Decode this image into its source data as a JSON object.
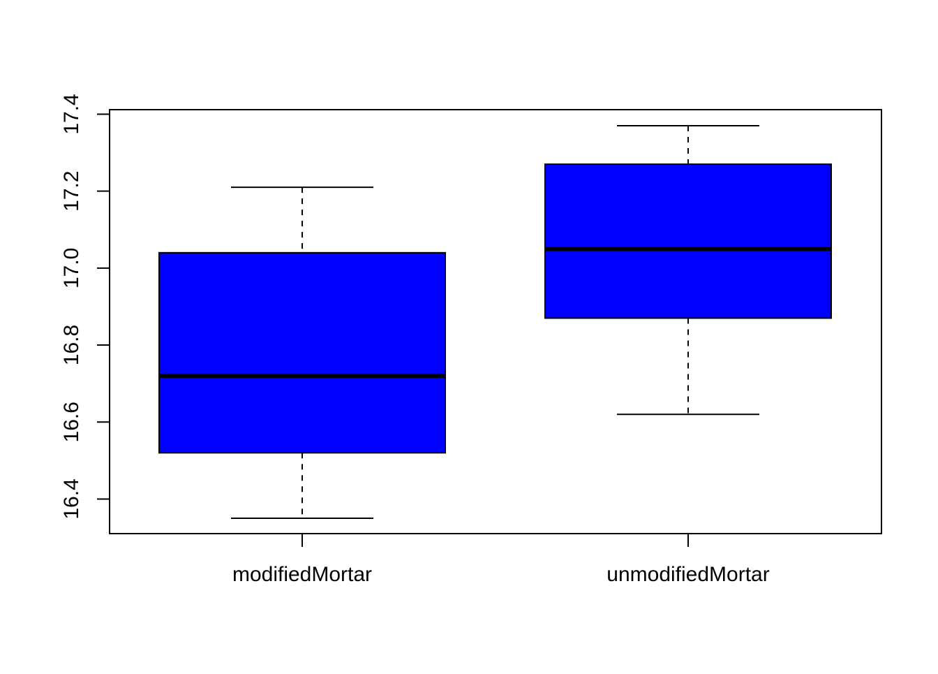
{
  "chart_data": {
    "type": "box",
    "title": "",
    "xlabel": "",
    "ylabel": "",
    "ylim": [
      16.35,
      17.37
    ],
    "yticks": [
      16.4,
      16.6,
      16.8,
      17.0,
      17.2,
      17.4
    ],
    "ytick_labels": [
      "16.4",
      "16.6",
      "16.8",
      "17.0",
      "17.2",
      "17.4"
    ],
    "categories": [
      "modifiedMortar",
      "unmodifiedMortar"
    ],
    "boxes": [
      {
        "category": "modifiedMortar",
        "min": 16.35,
        "q1": 16.52,
        "median": 16.72,
        "q3": 17.04,
        "max": 17.21
      },
      {
        "category": "unmodifiedMortar",
        "min": 16.62,
        "q1": 16.87,
        "median": 17.05,
        "q3": 17.27,
        "max": 17.37
      }
    ],
    "box_color": "#0000ff",
    "grid": false,
    "legend": "none"
  }
}
